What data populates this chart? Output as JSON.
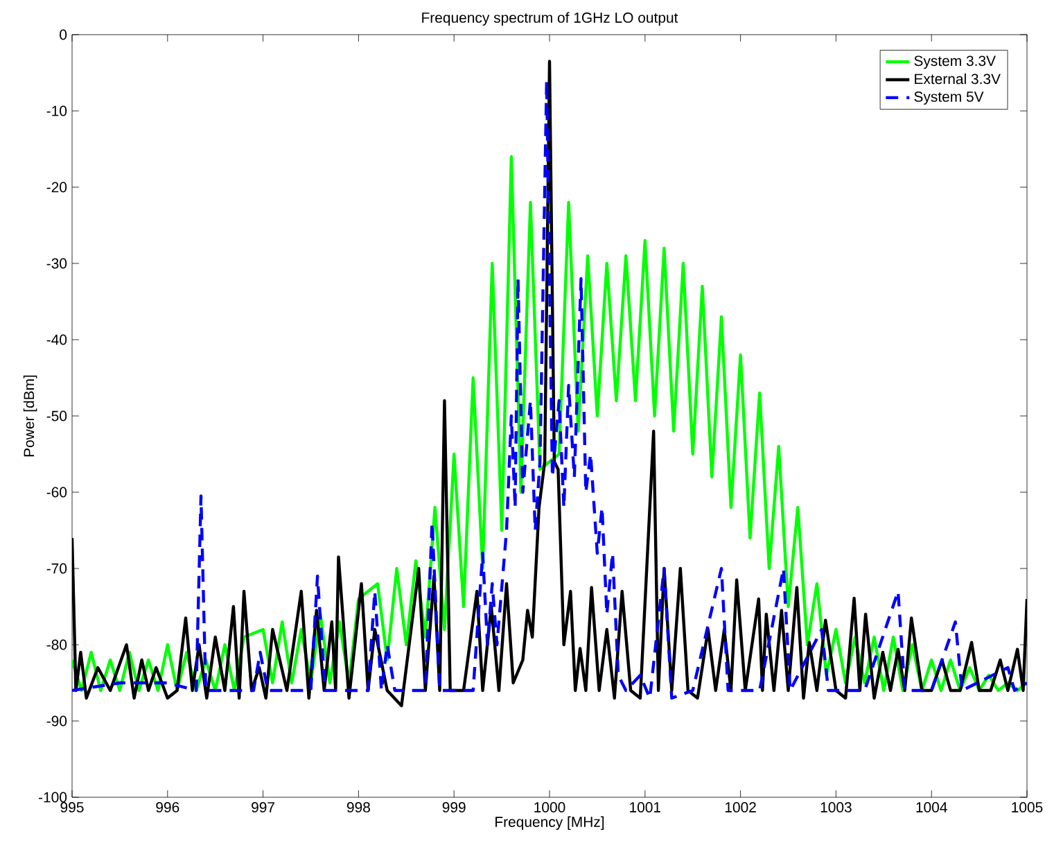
{
  "chart_data": {
    "type": "line",
    "title": "Frequency spectrum of 1GHz LO output",
    "xlabel": "Frequency [MHz]",
    "ylabel": "Power [dBm]",
    "xlim": [
      995,
      1005
    ],
    "ylim": [
      -100,
      0
    ],
    "xticks": [
      995,
      996,
      997,
      998,
      999,
      1000,
      1001,
      1002,
      1003,
      1004,
      1005
    ],
    "yticks": [
      -100,
      -90,
      -80,
      -70,
      -60,
      -50,
      -40,
      -30,
      -20,
      -10,
      0
    ],
    "legend": "top right",
    "series": [
      {
        "name": "System 3.3V",
        "color": "#00ff00",
        "line_style": "solid",
        "x": [
          995.0,
          995.1,
          995.2,
          995.3,
          995.4,
          995.5,
          995.6,
          995.7,
          995.8,
          995.9,
          996.0,
          996.1,
          996.2,
          996.3,
          996.4,
          996.5,
          996.6,
          996.7,
          996.8,
          996.9,
          997.0,
          997.1,
          997.2,
          997.3,
          997.4,
          997.5,
          997.6,
          997.7,
          997.8,
          997.9,
          998.0,
          998.1,
          998.2,
          998.3,
          998.4,
          998.5,
          998.6,
          998.7,
          998.8,
          998.9,
          999.0,
          999.1,
          999.2,
          999.3,
          999.4,
          999.5,
          999.6,
          999.7,
          999.8,
          999.9,
          1000.0,
          1000.1,
          1000.2,
          1000.3,
          1000.4,
          1000.5,
          1000.6,
          1000.7,
          1000.8,
          1000.9,
          1001.0,
          1001.1,
          1001.2,
          1001.3,
          1001.4,
          1001.5,
          1001.6,
          1001.7,
          1001.8,
          1001.9,
          1002.0,
          1002.1,
          1002.2,
          1002.3,
          1002.4,
          1002.5,
          1002.6,
          1002.7,
          1002.8,
          1002.9,
          1003.0,
          1003.1,
          1003.2,
          1003.3,
          1003.4,
          1003.5,
          1003.6,
          1003.7,
          1003.8,
          1003.9,
          1004.0,
          1004.1,
          1004.2,
          1004.3,
          1004.4,
          1004.5,
          1004.6,
          1004.7,
          1004.8,
          1004.9,
          1005.0
        ],
        "values": [
          -82,
          -86,
          -81,
          -86,
          -82,
          -86,
          -81,
          -86,
          -82,
          -86,
          -80,
          -86,
          -81,
          -86,
          -82,
          -86,
          -80,
          -86,
          -79,
          null,
          -78,
          -85,
          -77,
          -85,
          -78,
          -85,
          -76,
          -85,
          -77,
          -85,
          -74,
          null,
          -72,
          -82,
          -70,
          -80,
          -69,
          -79,
          -62,
          -78,
          -55,
          -75,
          -45,
          -70,
          -30,
          -65,
          -16,
          -60,
          -22,
          -57,
          null,
          -55,
          -22,
          -52,
          -29,
          -50,
          -30,
          -48,
          -29,
          -48,
          -27,
          -50,
          -28,
          -52,
          -30,
          -55,
          -33,
          -58,
          -37,
          -62,
          -42,
          -66,
          -47,
          -70,
          -54,
          -75,
          -62,
          -80,
          -72,
          -84,
          -78,
          -85,
          -79,
          -85,
          -79,
          -86,
          -79,
          -86,
          -80,
          -86,
          -82,
          -86,
          -82,
          -86,
          -83,
          -86,
          -84,
          -86,
          -85,
          -86,
          -85
        ]
      },
      {
        "name": "External 3.3V",
        "color": "#000000",
        "line_style": "solid",
        "x": [
          995.0,
          995.04,
          995.09,
          995.15,
          995.27,
          995.4,
          995.57,
          995.65,
          995.73,
          995.8,
          995.88,
          996.0,
          996.1,
          996.19,
          996.26,
          996.33,
          996.41,
          996.5,
          996.6,
          996.69,
          996.75,
          996.8,
          996.88,
          996.96,
          997.03,
          997.1,
          997.25,
          997.4,
          997.48,
          997.56,
          997.64,
          997.72,
          997.76,
          997.79,
          997.9,
          998.03,
          998.1,
          998.17,
          998.3,
          998.45,
          998.63,
          998.7,
          998.79,
          998.85,
          998.9,
          998.96,
          999.1,
          999.24,
          999.3,
          999.39,
          999.47,
          999.55,
          999.62,
          999.72,
          999.77,
          999.82,
          999.89,
          999.95,
          1000.0,
          1000.05,
          1000.09,
          1000.15,
          1000.22,
          1000.27,
          1000.32,
          1000.38,
          1000.44,
          1000.52,
          1000.6,
          1000.68,
          1000.76,
          1000.85,
          1000.95,
          1001.09,
          1001.14,
          1001.2,
          1001.28,
          1001.37,
          1001.45,
          1001.55,
          1001.66,
          1001.74,
          1001.83,
          1001.9,
          1001.96,
          1002.05,
          1002.19,
          1002.23,
          1002.27,
          1002.35,
          1002.43,
          1002.5,
          1002.59,
          1002.66,
          1002.72,
          1002.8,
          1002.89,
          1003.0,
          1003.1,
          1003.19,
          1003.25,
          1003.31,
          1003.4,
          1003.49,
          1003.57,
          1003.65,
          1003.72,
          1003.79,
          1003.9,
          1004.0,
          1004.11,
          1004.2,
          1004.3,
          1004.42,
          1004.5,
          1004.62,
          1004.72,
          1004.8,
          1004.9,
          1004.96,
          1005.0
        ],
        "values": [
          -66,
          -86,
          -81,
          -87,
          -83,
          -86,
          -80,
          -87,
          -82,
          -86,
          -83,
          -87,
          -86,
          -76.5,
          -86,
          -80,
          -87,
          -79,
          -86,
          -75,
          -87,
          -73,
          -86,
          -83,
          -87,
          -78,
          -86,
          -73,
          -87,
          -75.5,
          -86,
          -77,
          -86,
          -68.5,
          -87,
          -72,
          -86,
          -78,
          -86,
          -88,
          -70,
          -86,
          -71,
          -86,
          -48,
          -86,
          -86,
          -73,
          -86,
          -75,
          -86,
          -72,
          -85,
          -82,
          -75.5,
          -79,
          -62,
          -56,
          -3.5,
          -56,
          -57,
          -80,
          -73,
          -86,
          -80.5,
          -86,
          -72.5,
          -86,
          -78,
          -87,
          -73,
          -86,
          -87,
          -52,
          -86,
          -70,
          -86,
          -70,
          -86,
          -87,
          -78,
          -86,
          -78,
          -86,
          -71.5,
          -86,
          -74,
          -86,
          -76,
          -86,
          -75.5,
          -86,
          -72.5,
          -87,
          -79.7,
          -86,
          -76.8,
          -86,
          -87,
          -73.9,
          -86,
          -76,
          -87,
          -81,
          -86,
          -80.6,
          -86,
          -76.5,
          -86,
          -86,
          -82,
          -86,
          -86,
          -79.7,
          -86,
          -86,
          -82,
          -86,
          -80.6,
          -86,
          -74
        ]
      },
      {
        "name": "System 5V",
        "color": "#0000ff",
        "line_style": "dashed",
        "x": [
          995.0,
          995.5,
          996.0,
          996.3,
          996.35,
          996.4,
          996.9,
          996.97,
          997.05,
          997.5,
          997.57,
          997.65,
          998.1,
          998.17,
          998.24,
          998.3,
          998.38,
          998.7,
          998.77,
          998.85,
          999.2,
          999.3,
          999.35,
          999.4,
          999.45,
          999.55,
          999.6,
          999.64,
          999.67,
          999.72,
          999.8,
          999.85,
          999.9,
          999.97,
          1000.03,
          1000.1,
          1000.15,
          1000.2,
          1000.26,
          1000.33,
          1000.38,
          1000.43,
          1000.5,
          1000.55,
          1000.6,
          1000.66,
          1000.72,
          1000.8,
          1000.95,
          1001.05,
          1001.2,
          1001.28,
          1001.5,
          1001.8,
          1001.87,
          1002.2,
          1002.45,
          1002.52,
          1002.85,
          1002.92,
          1003.3,
          1003.65,
          1003.72,
          1004.0,
          1004.25,
          1004.32,
          1004.8,
          1004.87,
          1005.0
        ],
        "values": [
          -86,
          -85,
          -85,
          -86,
          -60.5,
          -86,
          -86,
          -81,
          -86,
          -86,
          -71,
          -86,
          -86,
          -73,
          -86,
          -80,
          -86,
          -86,
          -64,
          -86,
          -86,
          -68,
          -80,
          -72,
          -80,
          -65,
          -50,
          -62,
          -32,
          -60,
          -48,
          -65,
          -56,
          -6,
          -58,
          -48,
          -62,
          -46,
          -58,
          -32,
          -60,
          -55,
          -68,
          -62,
          -76,
          -68,
          -84,
          -86,
          -84,
          -87,
          -70,
          -87,
          -86,
          -70,
          -86,
          -86,
          -70,
          -86,
          -78,
          -86,
          -86,
          -73,
          -86,
          -86,
          -77,
          -86,
          -83,
          -86,
          -85
        ]
      }
    ]
  }
}
